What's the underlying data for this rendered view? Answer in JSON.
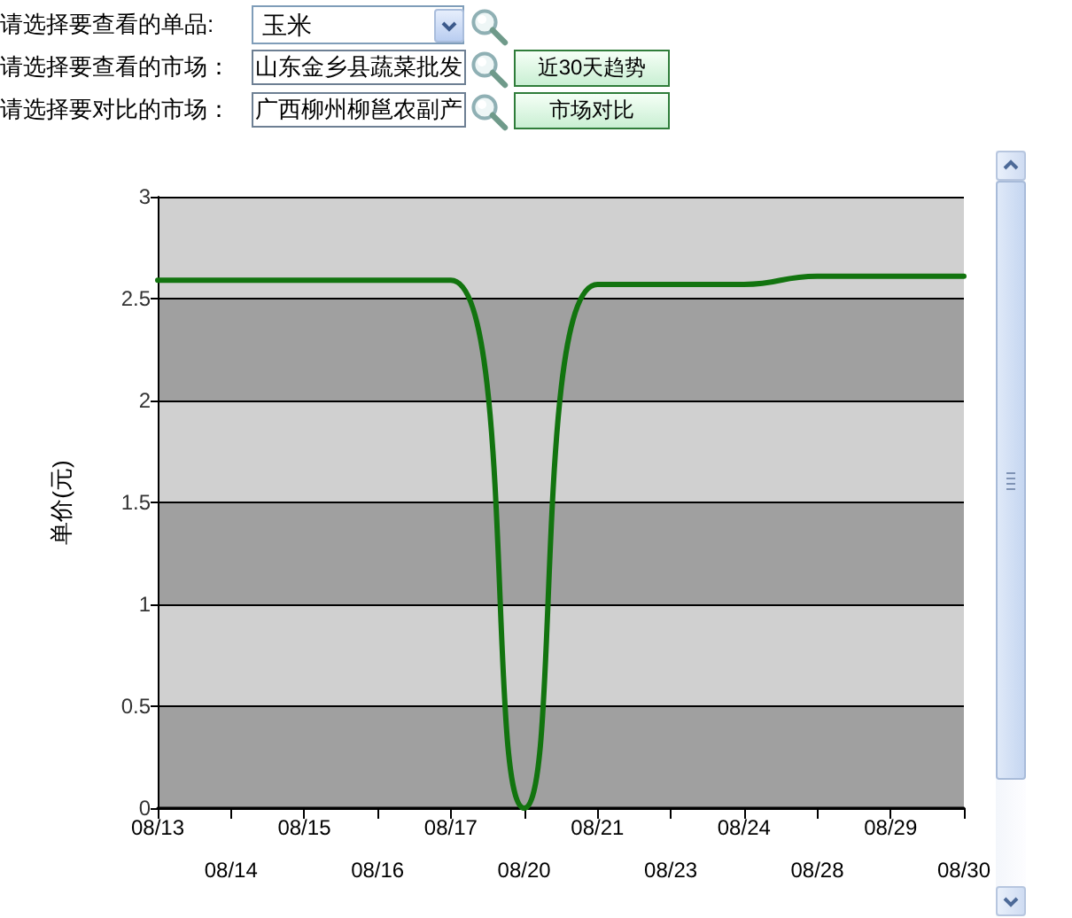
{
  "chart_data": {
    "type": "line",
    "ylabel": "单价(元)",
    "categories": [
      "08/13",
      "08/14",
      "08/15",
      "08/16",
      "08/17",
      "08/20",
      "08/21",
      "08/23",
      "08/24",
      "08/28",
      "08/29",
      "08/30"
    ],
    "series": [
      {
        "color": "#12740f",
        "values": [
          2.59,
          2.59,
          2.59,
          2.59,
          2.59,
          0,
          2.57,
          2.57,
          2.57,
          2.61,
          2.61,
          2.61
        ]
      }
    ],
    "ylim": [
      0,
      3
    ],
    "yticks": [
      0,
      0.5,
      1,
      1.5,
      2,
      2.5,
      3
    ],
    "grid": "y",
    "marker": "none",
    "line_style": "solid",
    "annotations": [
      "请选择要查看的单品:",
      "玉米",
      "请选择要查看的市场：",
      "山东金乡县蔬菜批发",
      "近30天趋势",
      "请选择要对比的市场：",
      "广西柳州柳邕农副产",
      "市场对比"
    ]
  }
}
